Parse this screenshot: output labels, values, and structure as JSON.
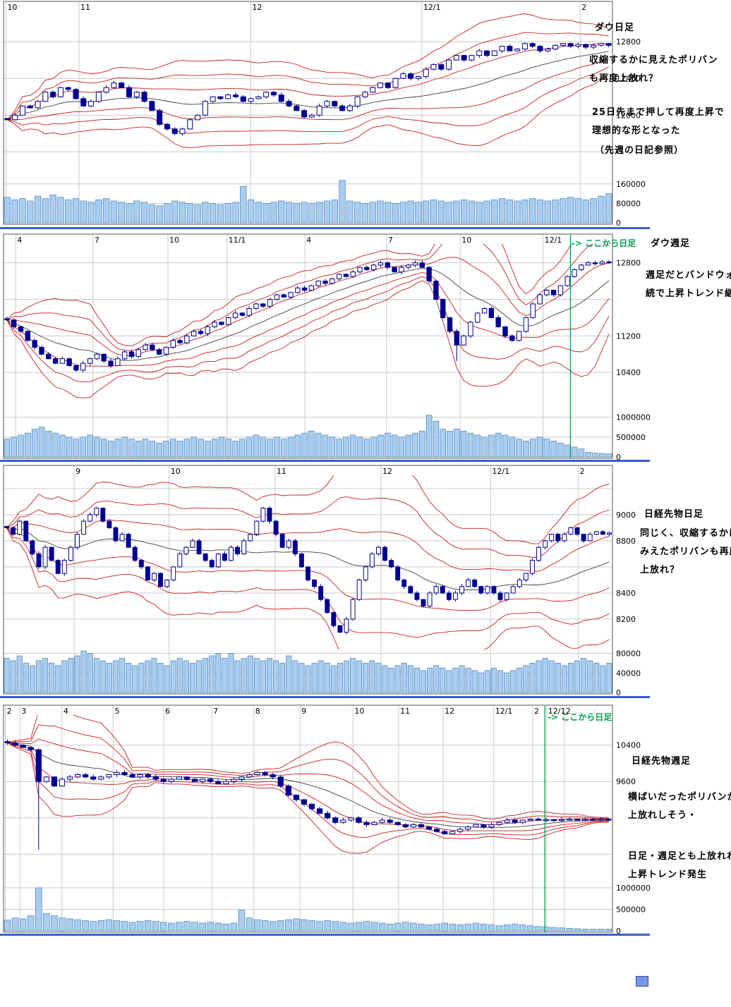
{
  "labels": {
    "daily_from_here": "-> ここから日足"
  },
  "colors": {
    "candle_down": "#000090",
    "candle_up_fill": "#ffffff",
    "candle_stroke": "#000090",
    "band_red": "#c42020",
    "band_center": "#404040",
    "volume_fill": "#a8cdf0",
    "volume_stroke": "#5588bb",
    "grid": "#c9c9c9",
    "border": "#555555",
    "axis_text": "#000000",
    "green_marker": "#00a050",
    "divider": "#3a5ecf"
  },
  "chart_data": [
    {
      "id": "dow-daily",
      "type": "candlestick",
      "title": "ダウ日足",
      "notes": [
        "収縮するかに見えたポリバン",
        "も再度上放れ？",
        "25日先まで押して再度上昇で",
        "理想的な形となった",
        "（先週の日記参照）"
      ],
      "x_labels": [
        {
          "t": "10",
          "f": 0.004
        },
        {
          "t": "11",
          "f": 0.124
        },
        {
          "t": "12",
          "f": 0.406
        },
        {
          "t": "12/1",
          "f": 0.687
        },
        {
          "t": "2",
          "f": 0.947
        }
      ],
      "y_ticks": [
        {
          "t": "12800",
          "v": 12800
        },
        {
          "t": "12400",
          "v": 12400
        },
        {
          "t": "12000",
          "v": 12000
        }
      ],
      "price_range": [
        11350,
        13100
      ],
      "volume_ticks": [
        {
          "t": "160000",
          "v": 160000
        },
        {
          "t": "80000",
          "v": 80000
        },
        {
          "t": "0",
          "v": 0
        }
      ],
      "volume_max": 180000,
      "band_window": 25,
      "closes": [
        11950,
        12000,
        12100,
        12080,
        12150,
        12250,
        12200,
        12300,
        12280,
        12180,
        12100,
        12150,
        12250,
        12300,
        12350,
        12300,
        12200,
        12250,
        12150,
        12050,
        11900,
        11850,
        11800,
        11850,
        11950,
        12000,
        12150,
        12200,
        12180,
        12220,
        12200,
        12150,
        12180,
        12200,
        12250,
        12220,
        12150,
        12100,
        12050,
        11980,
        12000,
        12100,
        12150,
        12100,
        12050,
        12100,
        12200,
        12250,
        12300,
        12350,
        12300,
        12400,
        12450,
        12400,
        12420,
        12500,
        12550,
        12500,
        12600,
        12650,
        12600,
        12650,
        12700,
        12650,
        12700,
        12750,
        12700,
        12720,
        12780,
        12750,
        12700,
        12720,
        12760,
        12780,
        12750,
        12770,
        12740,
        12760,
        12780,
        12760
      ],
      "volumes": [
        105000,
        95000,
        100000,
        90000,
        110000,
        100000,
        115000,
        105000,
        95000,
        100000,
        90000,
        85000,
        95000,
        100000,
        90000,
        85000,
        80000,
        90000,
        85000,
        75000,
        70000,
        80000,
        90000,
        85000,
        80000,
        75000,
        85000,
        80000,
        75000,
        80000,
        85000,
        150000,
        95000,
        85000,
        80000,
        85000,
        90000,
        85000,
        80000,
        85000,
        80000,
        85000,
        90000,
        95000,
        175000,
        90000,
        85000,
        80000,
        85000,
        90000,
        85000,
        80000,
        85000,
        90000,
        85000,
        90000,
        95000,
        90000,
        85000,
        90000,
        95000,
        90000,
        85000,
        90000,
        95000,
        100000,
        95000,
        90000,
        95000,
        100000,
        95000,
        90000,
        95000,
        100000,
        105000,
        100000,
        95000,
        100000,
        110000,
        120000
      ]
    },
    {
      "id": "dow-weekly",
      "type": "candlestick",
      "title": "ダウ週足",
      "notes": [
        "週足だとバンドウォーク継",
        "続で上昇トレンド継続"
      ],
      "x_labels": [
        {
          "t": "4",
          "f": 0.02
        },
        {
          "t": "7",
          "f": 0.147
        },
        {
          "t": "10",
          "f": 0.27
        },
        {
          "t": "11/1",
          "f": 0.367
        },
        {
          "t": "4",
          "f": 0.495
        },
        {
          "t": "7",
          "f": 0.629
        },
        {
          "t": "10",
          "f": 0.75
        },
        {
          "t": "12/1",
          "f": 0.886
        }
      ],
      "y_ticks": [
        {
          "t": "12800",
          "v": 12800
        },
        {
          "t": "11200",
          "v": 11200
        },
        {
          "t": "10400",
          "v": 10400
        }
      ],
      "price_range": [
        9600,
        13150
      ],
      "volume_ticks": [
        {
          "t": "1000000",
          "v": 1000000
        },
        {
          "t": "500000",
          "v": 500000
        },
        {
          "t": "0",
          "v": 0
        }
      ],
      "volume_max": 1100000,
      "band_window": 13,
      "green_f": 0.931,
      "low_override": {
        "65": 10650
      },
      "closes": [
        11550,
        11400,
        11300,
        11100,
        10950,
        10800,
        10700,
        10600,
        10700,
        10550,
        10450,
        10600,
        10700,
        10800,
        10650,
        10550,
        10700,
        10850,
        10750,
        10900,
        11000,
        10900,
        10800,
        10950,
        11100,
        11050,
        11200,
        11300,
        11250,
        11400,
        11500,
        11450,
        11600,
        11700,
        11650,
        11800,
        11900,
        11850,
        12000,
        12100,
        12050,
        12150,
        12250,
        12200,
        12300,
        12400,
        12350,
        12450,
        12550,
        12500,
        12600,
        12700,
        12650,
        12750,
        12800,
        12700,
        12600,
        12700,
        12750,
        12800,
        12700,
        12400,
        12000,
        11600,
        11300,
        11000,
        11200,
        11500,
        11700,
        11800,
        11600,
        11400,
        11200,
        11100,
        11300,
        11600,
        11900,
        12100,
        12200,
        12100,
        12300,
        12500,
        12650,
        12750,
        12800,
        12780,
        12820,
        12800
      ],
      "volumes": [
        450000,
        500000,
        550000,
        600000,
        700000,
        750000,
        650000,
        600000,
        550000,
        500000,
        450000,
        500000,
        550000,
        500000,
        450000,
        400000,
        450000,
        500000,
        450000,
        400000,
        450000,
        400000,
        350000,
        400000,
        450000,
        400000,
        450000,
        500000,
        450000,
        400000,
        450000,
        500000,
        450000,
        400000,
        450000,
        500000,
        550000,
        500000,
        450000,
        500000,
        450000,
        500000,
        550000,
        600000,
        650000,
        600000,
        550000,
        500000,
        450000,
        500000,
        550000,
        500000,
        450000,
        500000,
        550000,
        600000,
        550000,
        500000,
        550000,
        600000,
        650000,
        1050000,
        900000,
        700000,
        650000,
        700000,
        650000,
        600000,
        550000,
        500000,
        550000,
        600000,
        550000,
        500000,
        450000,
        400000,
        450000,
        500000,
        450000,
        400000,
        350000,
        300000,
        250000,
        200000,
        120000,
        100000,
        90000,
        80000
      ]
    },
    {
      "id": "nikkei-futures-daily",
      "type": "candlestick",
      "title": "日経先物日足",
      "notes": [
        "同じく、収縮するかに",
        "みえたポリバンも再度",
        "上放れ？"
      ],
      "x_labels": [
        {
          "t": "9",
          "f": 0.116
        },
        {
          "t": "10",
          "f": 0.272
        },
        {
          "t": "11",
          "f": 0.446
        },
        {
          "t": "12",
          "f": 0.62
        },
        {
          "t": "12/1",
          "f": 0.8
        },
        {
          "t": "2",
          "f": 0.944
        }
      ],
      "y_ticks": [
        {
          "t": "9000",
          "v": 9000
        },
        {
          "t": "8800",
          "v": 8800
        },
        {
          "t": "8400",
          "v": 8400
        },
        {
          "t": "8200",
          "v": 8200
        }
      ],
      "price_range": [
        8000,
        9280
      ],
      "volume_ticks": [
        {
          "t": "80000",
          "v": 80000
        },
        {
          "t": "40000",
          "v": 40000
        },
        {
          "t": "0",
          "v": 0
        }
      ],
      "volume_max": 88000,
      "band_window": 25,
      "closes": [
        8900,
        8850,
        8950,
        8800,
        8700,
        8600,
        8750,
        8650,
        8550,
        8650,
        8750,
        8850,
        8950,
        9000,
        9050,
        8950,
        8900,
        8800,
        8850,
        8750,
        8650,
        8600,
        8500,
        8550,
        8450,
        8500,
        8600,
        8700,
        8750,
        8800,
        8700,
        8650,
        8600,
        8700,
        8650,
        8750,
        8700,
        8800,
        8850,
        8950,
        9050,
        8950,
        8850,
        8750,
        8800,
        8700,
        8600,
        8500,
        8450,
        8350,
        8250,
        8150,
        8100,
        8200,
        8350,
        8500,
        8600,
        8700,
        8750,
        8650,
        8600,
        8500,
        8450,
        8400,
        8350,
        8300,
        8400,
        8450,
        8400,
        8350,
        8400,
        8450,
        8500,
        8450,
        8400,
        8450,
        8400,
        8350,
        8400,
        8450,
        8500,
        8550,
        8650,
        8750,
        8800,
        8850,
        8800,
        8850,
        8900,
        8850,
        8800,
        8850,
        8870,
        8850,
        8860
      ],
      "volumes": [
        70000,
        65000,
        75000,
        60000,
        55000,
        65000,
        70000,
        60000,
        55000,
        65000,
        70000,
        75000,
        85000,
        80000,
        70000,
        65000,
        60000,
        65000,
        70000,
        60000,
        55000,
        60000,
        65000,
        70000,
        60000,
        55000,
        65000,
        70000,
        65000,
        60000,
        65000,
        70000,
        75000,
        80000,
        70000,
        80000,
        65000,
        70000,
        75000,
        70000,
        65000,
        70000,
        65000,
        60000,
        75000,
        65000,
        60000,
        55000,
        60000,
        65000,
        60000,
        55000,
        60000,
        65000,
        70000,
        65000,
        60000,
        65000,
        60000,
        55000,
        50000,
        55000,
        60000,
        55000,
        50000,
        45000,
        50000,
        55000,
        50000,
        45000,
        50000,
        55000,
        50000,
        45000,
        40000,
        45000,
        50000,
        45000,
        40000,
        45000,
        50000,
        55000,
        60000,
        65000,
        70000,
        65000,
        60000,
        55000,
        60000,
        65000,
        70000,
        65000,
        60000,
        55000,
        60000
      ]
    },
    {
      "id": "nikkei-futures-weekly",
      "type": "candlestick",
      "title": "日経先物週足",
      "notes": [
        "横ばいだったポリバンが",
        "上放れしそう・",
        "日足・週足とも上放れれば",
        "上昇トレンド発生"
      ],
      "x_labels": [
        {
          "t": "2",
          "f": 0.003
        },
        {
          "t": "3",
          "f": 0.027
        },
        {
          "t": "4",
          "f": 0.096
        },
        {
          "t": "5",
          "f": 0.18
        },
        {
          "t": "6",
          "f": 0.263
        },
        {
          "t": "7",
          "f": 0.342
        },
        {
          "t": "8",
          "f": 0.411
        },
        {
          "t": "9",
          "f": 0.487
        },
        {
          "t": "10",
          "f": 0.574
        },
        {
          "t": "11",
          "f": 0.649
        },
        {
          "t": "12",
          "f": 0.722
        },
        {
          "t": "12/1",
          "f": 0.805
        },
        {
          "t": "2",
          "f": 0.869
        },
        {
          "t": "12/1",
          "f": 0.892
        },
        {
          "t": "2",
          "f": 0.921
        }
      ],
      "y_ticks": [
        {
          "t": "10400",
          "v": 10400
        },
        {
          "t": "9600",
          "v": 9600
        }
      ],
      "price_range": [
        7400,
        11000
      ],
      "volume_ticks": [
        {
          "t": "1000000",
          "v": 1000000
        },
        {
          "t": "500000",
          "v": 500000
        },
        {
          "t": "0",
          "v": 0
        }
      ],
      "volume_max": 1050000,
      "band_window": 13,
      "green_f": 0.889,
      "low_override": {
        "4": 8100
      },
      "closes": [
        10450,
        10400,
        10350,
        10300,
        9600,
        9700,
        9500,
        9650,
        9700,
        9750,
        9700,
        9650,
        9700,
        9750,
        9800,
        9750,
        9700,
        9750,
        9700,
        9650,
        9600,
        9650,
        9700,
        9650,
        9600,
        9650,
        9600,
        9550,
        9600,
        9650,
        9700,
        9750,
        9800,
        9750,
        9700,
        9500,
        9300,
        9200,
        9100,
        9000,
        8900,
        8800,
        8700,
        8750,
        8800,
        8700,
        8650,
        8700,
        8750,
        8700,
        8650,
        8600,
        8650,
        8600,
        8550,
        8500,
        8450,
        8500,
        8550,
        8600,
        8650,
        8600,
        8650,
        8700,
        8750,
        8700,
        8750,
        8770,
        8750,
        8760,
        8750,
        8760,
        8770,
        8760,
        8770,
        8760,
        8770,
        8765
      ],
      "volumes": [
        250000,
        300000,
        280000,
        350000,
        1000000,
        400000,
        350000,
        300000,
        280000,
        260000,
        240000,
        220000,
        240000,
        260000,
        240000,
        220000,
        200000,
        220000,
        240000,
        220000,
        200000,
        180000,
        200000,
        220000,
        200000,
        180000,
        200000,
        180000,
        160000,
        180000,
        480000,
        300000,
        260000,
        240000,
        220000,
        240000,
        260000,
        280000,
        260000,
        240000,
        220000,
        240000,
        220000,
        200000,
        180000,
        200000,
        220000,
        200000,
        180000,
        160000,
        180000,
        200000,
        180000,
        160000,
        140000,
        160000,
        180000,
        160000,
        140000,
        160000,
        180000,
        160000,
        140000,
        120000,
        140000,
        160000,
        140000,
        120000,
        100000,
        90000,
        80000,
        70000,
        60000,
        50000,
        40000,
        40000,
        40000,
        40000
      ]
    }
  ]
}
